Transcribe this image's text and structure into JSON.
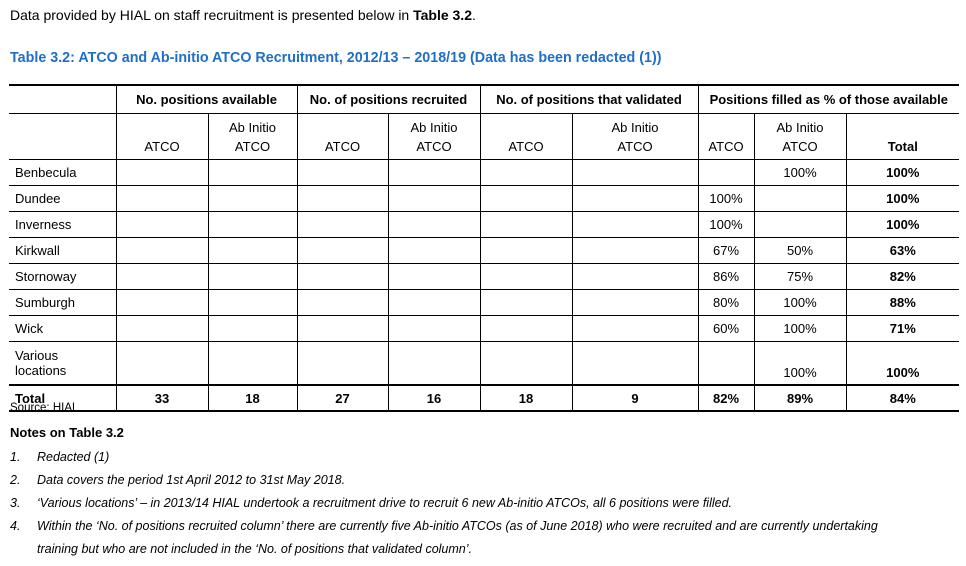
{
  "intro": {
    "before": "Data provided by HIAL on staff recruitment is presented below in ",
    "bold": "Table 3.2",
    "after": "."
  },
  "caption": "Table 3.2: ATCO and Ab-initio ATCO Recruitment, 2012/13 – 2018/19 (Data has been redacted (1))",
  "table": {
    "groups": [
      "No. positions available",
      "No. of positions recruited",
      "No. of positions that validated",
      "Positions filled as % of those available"
    ],
    "subheaders": {
      "atco": "ATCO",
      "ab_initio_line1": "Ab Initio",
      "ab_initio_line2": "ATCO",
      "total": "Total"
    },
    "rows": [
      {
        "location": "Benbecula",
        "cells": [
          "",
          "",
          "",
          "",
          "",
          "",
          "",
          "100%",
          "100%"
        ]
      },
      {
        "location": "Dundee",
        "cells": [
          "",
          "",
          "",
          "",
          "",
          "",
          "100%",
          "",
          "100%"
        ]
      },
      {
        "location": "Inverness",
        "cells": [
          "",
          "",
          "",
          "",
          "",
          "",
          "100%",
          "",
          "100%"
        ]
      },
      {
        "location": "Kirkwall",
        "cells": [
          "",
          "",
          "",
          "",
          "",
          "",
          "67%",
          "50%",
          "63%"
        ]
      },
      {
        "location": "Stornoway",
        "cells": [
          "",
          "",
          "",
          "",
          "",
          "",
          "86%",
          "75%",
          "82%"
        ]
      },
      {
        "location": "Sumburgh",
        "cells": [
          "",
          "",
          "",
          "",
          "",
          "",
          "80%",
          "100%",
          "88%"
        ]
      },
      {
        "location": "Wick",
        "cells": [
          "",
          "",
          "",
          "",
          "",
          "",
          "60%",
          "100%",
          "71%"
        ]
      },
      {
        "location_line1": "Various",
        "location_line2": "locations",
        "cells": [
          "",
          "",
          "",
          "",
          "",
          "",
          "",
          "100%",
          "100%"
        ]
      }
    ],
    "total_row": {
      "label": "Total",
      "cells": [
        "33",
        "18",
        "27",
        "16",
        "18",
        "9",
        "82%",
        "89%",
        "84%"
      ]
    }
  },
  "source": "Source: HIAL",
  "notes_title": "Notes on Table 3.2",
  "notes": [
    {
      "num": "1.",
      "text": "Redacted (1)"
    },
    {
      "num": "2.",
      "text": "Data covers the period 1st April 2012 to 31st May 2018."
    },
    {
      "num": "3.",
      "text": "‘Various locations’ – in 2013/14 HIAL undertook a recruitment drive to recruit 6 new Ab-initio ATCOs, all 6 positions were filled."
    },
    {
      "num": "4.",
      "text": "Within the ‘No. of positions recruited column’ there are currently five Ab-initio ATCOs (as of June 2018) who were recruited and are currently undertaking training but who are not included in the ‘No. of positions that validated column’."
    }
  ]
}
